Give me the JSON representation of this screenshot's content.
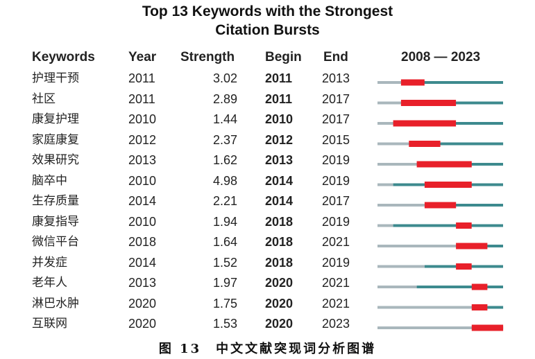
{
  "title_line1": "Top 13 Keywords with the Strongest",
  "title_line2": "Citation Bursts",
  "caption": "图 13　中文文献突现词分析图谱",
  "headers": {
    "keywords": "Keywords",
    "year": "Year",
    "strength": "Strength",
    "begin": "Begin",
    "end": "End",
    "range": "2008 — 2023"
  },
  "colors": {
    "pre_start": "#a9b7bc",
    "active": "#3d8a8e",
    "burst": "#e8202a"
  },
  "chart_data": {
    "type": "table",
    "timeline_start": 2008,
    "timeline_end": 2023,
    "rows": [
      {
        "keyword": "护理干预",
        "year": "2011",
        "strength": "3.02",
        "begin": "2011",
        "end": "2013"
      },
      {
        "keyword": "社区",
        "year": "2011",
        "strength": "2.89",
        "begin": "2011",
        "end": "2017"
      },
      {
        "keyword": "康复护理",
        "year": "2010",
        "strength": "1.44",
        "begin": "2010",
        "end": "2017"
      },
      {
        "keyword": "家庭康复",
        "year": "2012",
        "strength": "2.37",
        "begin": "2012",
        "end": "2015"
      },
      {
        "keyword": "效果研究",
        "year": "2013",
        "strength": "1.62",
        "begin": "2013",
        "end": "2019"
      },
      {
        "keyword": "脑卒中",
        "year": "2010",
        "strength": "4.98",
        "begin": "2014",
        "end": "2019"
      },
      {
        "keyword": "生存质量",
        "year": "2014",
        "strength": "2.21",
        "begin": "2014",
        "end": "2017"
      },
      {
        "keyword": "康复指导",
        "year": "2010",
        "strength": "1.94",
        "begin": "2018",
        "end": "2019"
      },
      {
        "keyword": "微信平台",
        "year": "2018",
        "strength": "1.64",
        "begin": "2018",
        "end": "2021"
      },
      {
        "keyword": "并发症",
        "year": "2014",
        "strength": "1.52",
        "begin": "2018",
        "end": "2019"
      },
      {
        "keyword": "老年人",
        "year": "2013",
        "strength": "1.97",
        "begin": "2020",
        "end": "2021"
      },
      {
        "keyword": "淋巴水肿",
        "year": "2020",
        "strength": "1.75",
        "begin": "2020",
        "end": "2021"
      },
      {
        "keyword": "互联网",
        "year": "2020",
        "strength": "1.53",
        "begin": "2020",
        "end": "2023"
      }
    ]
  }
}
